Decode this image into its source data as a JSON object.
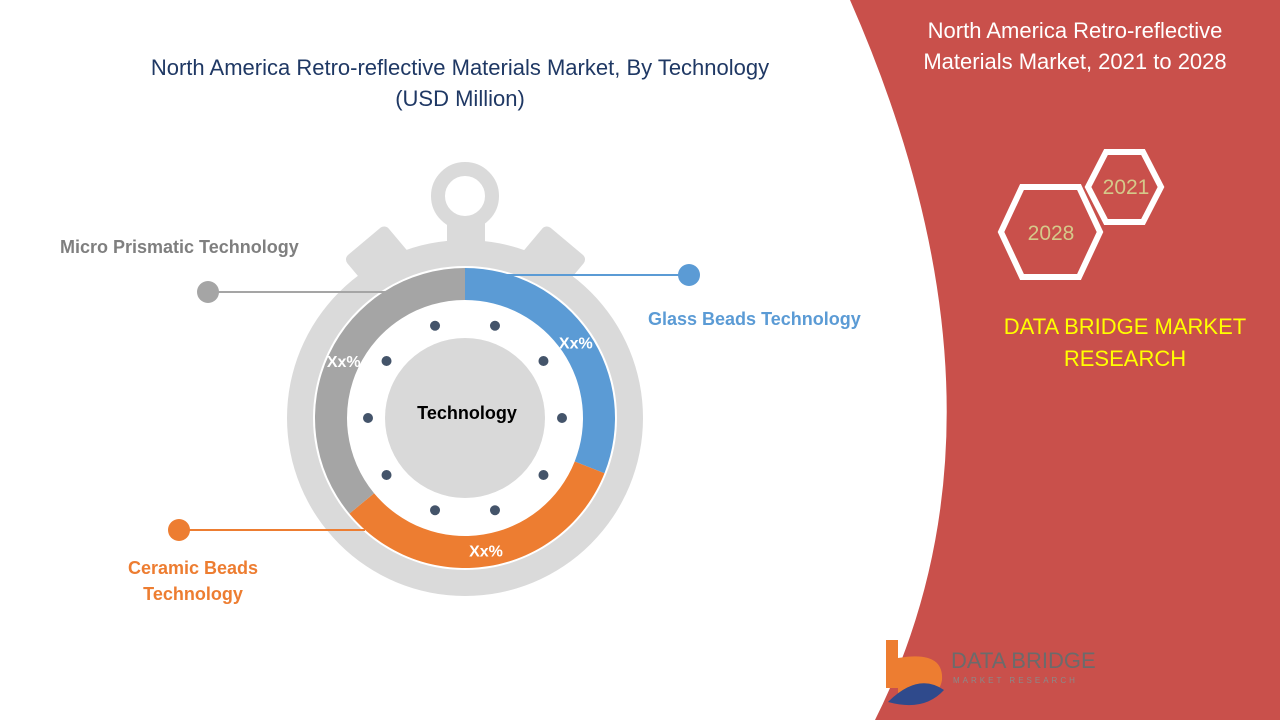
{
  "chart_data": {
    "type": "pie",
    "title": "North America Retro-reflective Materials Market, By Technology",
    "subtitle": "(USD Million)",
    "center_label": "Technology",
    "segments": [
      {
        "name": "Glass Beads Technology",
        "label": "Xx%",
        "share": 0.31,
        "color": "#5b9bd5"
      },
      {
        "name": "Ceramic Beads Technology",
        "label": "Xx%",
        "share": 0.33,
        "color": "#ed7d31"
      },
      {
        "name": "Micro Prismatic Technology",
        "label": "Xx%",
        "share": 0.36,
        "color": "#a5a5a5"
      }
    ]
  },
  "side_panel": {
    "title": "North America Retro-reflective Materials Market, 2021 to 2028",
    "year_start": "2021",
    "year_end": "2028",
    "brand": "DATA BRIDGE MARKET RESEARCH",
    "panel_color": "#c9504b"
  },
  "logo": {
    "name": "DATA BRIDGE",
    "tagline": "MARKET RESEARCH"
  }
}
